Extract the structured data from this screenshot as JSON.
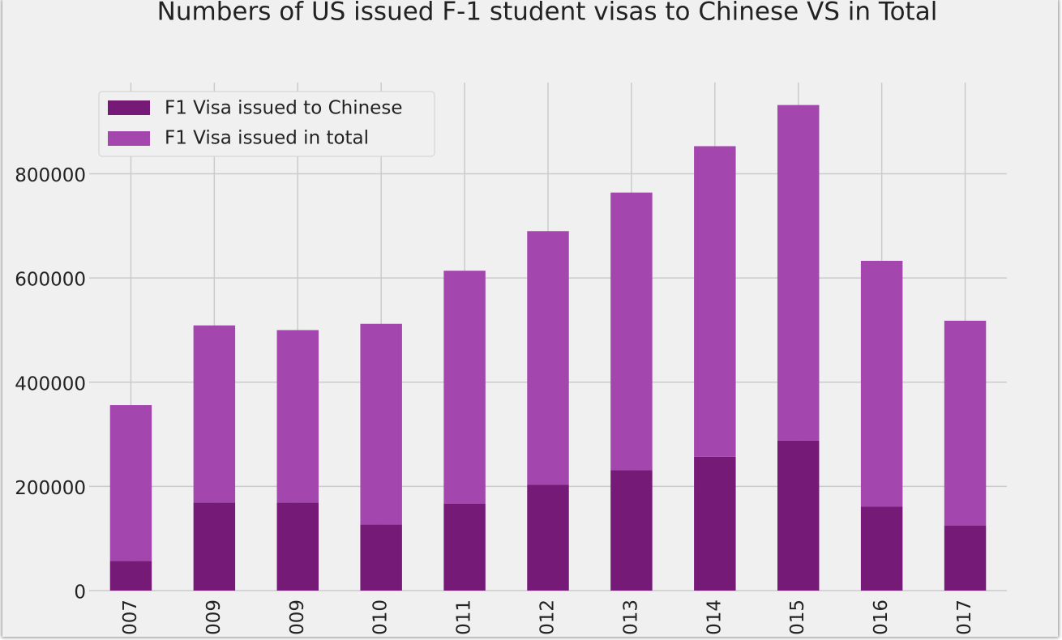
{
  "chart_data": {
    "type": "stacked-bar",
    "title": "Numbers of US issued F-1 student visas to Chinese VS in Total",
    "categories": [
      "007",
      "009",
      "009",
      "010",
      "011",
      "012",
      "013",
      "014",
      "015",
      "016",
      "017"
    ],
    "series": [
      {
        "name": "F1 Visa issued to Chinese",
        "color": "#751a77",
        "values": [
          57000,
          169000,
          169000,
          127000,
          167000,
          203000,
          231000,
          257000,
          288000,
          161000,
          125000
        ]
      },
      {
        "name": "F1 Visa issued in total",
        "color": "#a346ad",
        "values": [
          299000,
          340000,
          331000,
          385000,
          447000,
          487000,
          533000,
          596000,
          644000,
          472000,
          393000
        ]
      }
    ],
    "ylim": [
      0,
      975000
    ],
    "yticks": [
      0,
      200000,
      400000,
      600000,
      800000
    ],
    "grid": true
  }
}
